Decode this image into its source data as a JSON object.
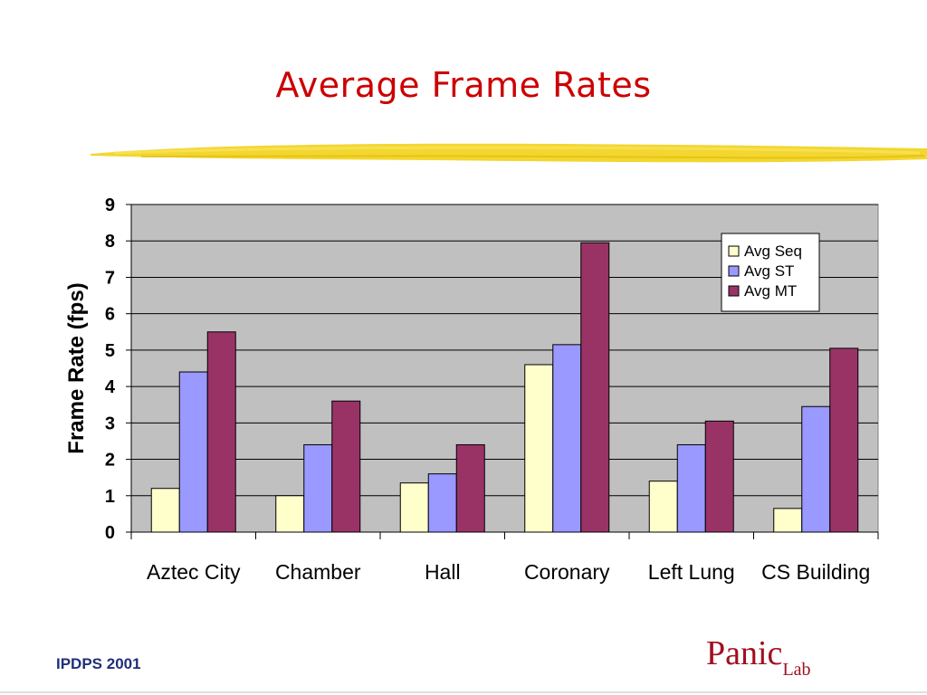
{
  "slide": {
    "title": "Average Frame Rates",
    "footer": "IPDPS 2001",
    "logo_main": "Panic",
    "logo_sub": "Lab"
  },
  "colors": {
    "title": "#cc0000",
    "plot_background": "#c0c0c0",
    "underline": "#f2d21a"
  },
  "chart_data": {
    "type": "bar",
    "title": "",
    "xlabel": "",
    "ylabel": "Frame Rate (fps)",
    "ylim": [
      0,
      9
    ],
    "yticks": [
      0,
      1,
      2,
      3,
      4,
      5,
      6,
      7,
      8,
      9
    ],
    "grid": true,
    "legend_position": "top-right",
    "categories": [
      "Aztec City",
      "Chamber",
      "Hall",
      "Coronary",
      "Left Lung",
      "CS Building"
    ],
    "series": [
      {
        "name": "Avg Seq",
        "color": "#ffffcc",
        "values": [
          1.2,
          1.0,
          1.35,
          4.6,
          1.4,
          0.65
        ]
      },
      {
        "name": "Avg ST",
        "color": "#9999ff",
        "values": [
          4.4,
          2.4,
          1.6,
          5.15,
          2.4,
          3.45
        ]
      },
      {
        "name": "Avg MT",
        "color": "#993366",
        "values": [
          5.5,
          3.6,
          2.4,
          7.95,
          3.05,
          5.05
        ]
      }
    ]
  }
}
